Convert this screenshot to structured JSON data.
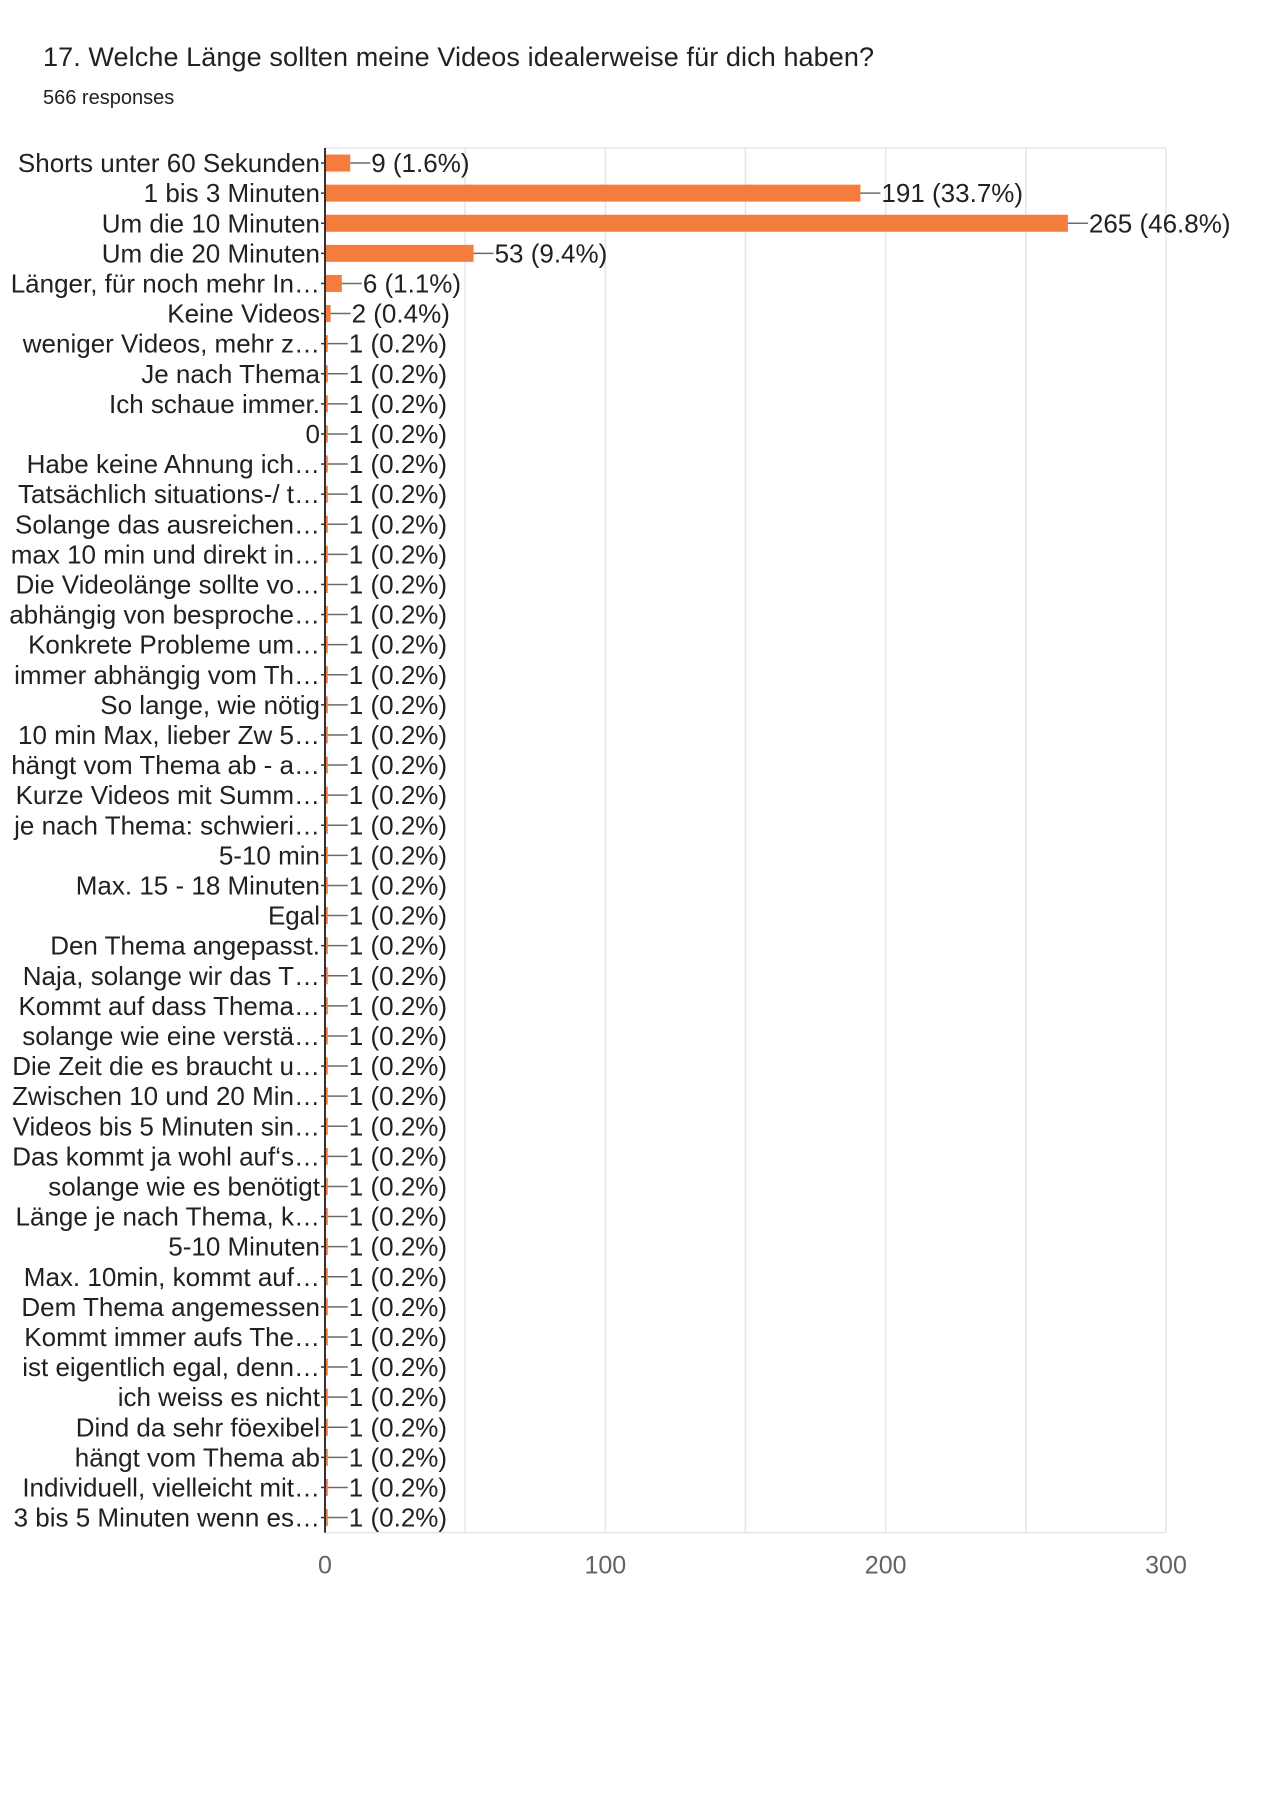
{
  "question": {
    "title": "17. Welche Länge sollten meine Videos idealerweise für dich haben?",
    "responses": "566 responses"
  },
  "colors": {
    "bar": "#f47c3c",
    "grid": "#e6e6e6",
    "axis": "#333333",
    "connector": "#6b6b6b"
  },
  "chart_data": {
    "type": "bar",
    "orientation": "horizontal",
    "grid": true,
    "xlim": [
      0,
      300
    ],
    "x_ticks": [
      0,
      100,
      200,
      300
    ],
    "categories": [
      "Shorts unter 60 Sekunden",
      "1 bis 3 Minuten",
      "Um die 10 Minuten",
      "Um die 20 Minuten",
      "Länger, für noch mehr In…",
      "Keine Videos",
      "weniger Videos, mehr z…",
      "Je nach Thema",
      "Ich schaue immer.",
      "0",
      "Habe keine Ahnung ich…",
      "Tatsächlich situations-/ t…",
      "Solange das ausreichen…",
      "max 10 min und direkt in…",
      "Die Videolänge sollte vo…",
      "abhängig von besproche…",
      "Konkrete Probleme um…",
      "immer abhängig vom Th…",
      "So lange, wie nötig",
      "10 min Max, lieber Zw 5…",
      "hängt vom Thema ab - a…",
      "Kurze Videos mit Summ…",
      "je nach Thema: schwieri…",
      "5-10 min",
      "Max. 15 - 18 Minuten",
      "Egal",
      "Den Thema angepasst.",
      "Naja, solange wir das T…",
      "Kommt auf dass Thema…",
      "solange wie eine verstä…",
      "Die Zeit die es braucht u…",
      "Zwischen 10 und 20 Min…",
      "Videos bis 5 Minuten sin…",
      "Das kommt ja wohl auf‘s…",
      "solange wie es benötigt",
      "Länge je nach Thema, k…",
      "5-10 Minuten",
      "Max. 10min, kommt auf…",
      "Dem Thema angemessen",
      "Kommt immer aufs The…",
      "ist eigentlich egal, denn…",
      "ich weiss es nicht",
      "Dind da sehr föexibel",
      "hängt vom Thema ab",
      "Individuell, vielleicht mit…",
      "3 bis 5 Minuten wenn es…"
    ],
    "values": [
      9,
      191,
      265,
      53,
      6,
      2,
      1,
      1,
      1,
      1,
      1,
      1,
      1,
      1,
      1,
      1,
      1,
      1,
      1,
      1,
      1,
      1,
      1,
      1,
      1,
      1,
      1,
      1,
      1,
      1,
      1,
      1,
      1,
      1,
      1,
      1,
      1,
      1,
      1,
      1,
      1,
      1,
      1,
      1,
      1,
      1
    ],
    "value_labels": [
      "9 (1.6%)",
      "191 (33.7%)",
      "265 (46.8%)",
      "53 (9.4%)",
      "6 (1.1%)",
      "2 (0.4%)",
      "1 (0.2%)",
      "1 (0.2%)",
      "1 (0.2%)",
      "1 (0.2%)",
      "1 (0.2%)",
      "1 (0.2%)",
      "1 (0.2%)",
      "1 (0.2%)",
      "1 (0.2%)",
      "1 (0.2%)",
      "1 (0.2%)",
      "1 (0.2%)",
      "1 (0.2%)",
      "1 (0.2%)",
      "1 (0.2%)",
      "1 (0.2%)",
      "1 (0.2%)",
      "1 (0.2%)",
      "1 (0.2%)",
      "1 (0.2%)",
      "1 (0.2%)",
      "1 (0.2%)",
      "1 (0.2%)",
      "1 (0.2%)",
      "1 (0.2%)",
      "1 (0.2%)",
      "1 (0.2%)",
      "1 (0.2%)",
      "1 (0.2%)",
      "1 (0.2%)",
      "1 (0.2%)",
      "1 (0.2%)",
      "1 (0.2%)",
      "1 (0.2%)",
      "1 (0.2%)",
      "1 (0.2%)",
      "1 (0.2%)",
      "1 (0.2%)",
      "1 (0.2%)",
      "1 (0.2%)"
    ]
  }
}
